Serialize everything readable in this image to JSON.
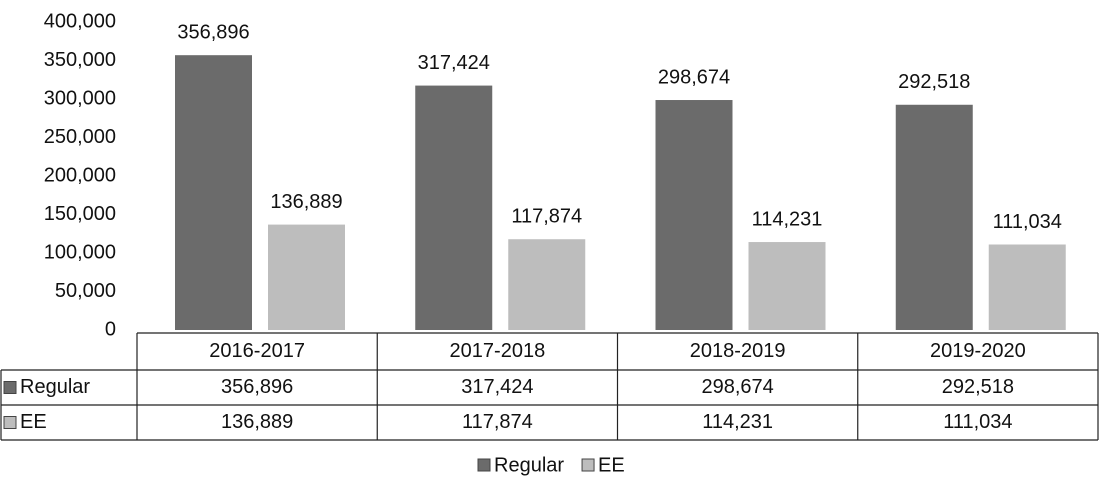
{
  "chart_data": {
    "type": "bar",
    "categories": [
      "2016-2017",
      "2017-2018",
      "2018-2019",
      "2019-2020"
    ],
    "series": [
      {
        "name": "Regular",
        "color": "#6b6b6b",
        "values": [
          356896,
          317424,
          298674,
          292518
        ],
        "value_labels": [
          "356,896",
          "317,424",
          "298,674",
          "292,518"
        ]
      },
      {
        "name": "EE",
        "color": "#bdbdbd",
        "values": [
          136889,
          117874,
          114231,
          111034
        ],
        "value_labels": [
          "136,889",
          "117,874",
          "114,231",
          "111,034"
        ]
      }
    ],
    "ylim": [
      0,
      400000
    ],
    "yticks": [
      0,
      {
        "value": 50000,
        "label": "50,000"
      },
      {
        "value": 100000,
        "label": "100,000"
      },
      {
        "value": 150000,
        "label": "150,000"
      },
      {
        "value": 200000,
        "label": "200,000"
      },
      {
        "value": 250000,
        "label": "250,000"
      },
      {
        "value": 300000,
        "label": "300,000"
      },
      {
        "value": 350000,
        "label": "350,000"
      },
      {
        "value": 400000,
        "label": "400,000"
      }
    ],
    "grid": false,
    "legend": "bottom"
  }
}
